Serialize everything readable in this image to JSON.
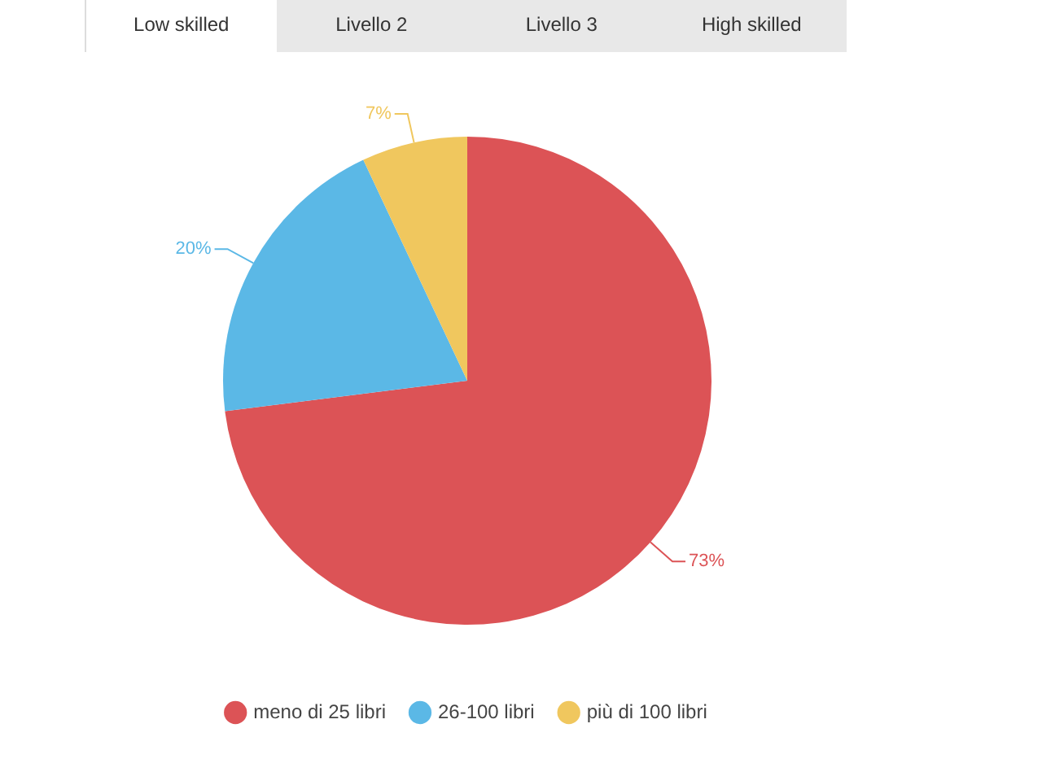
{
  "chart_data": {
    "type": "pie",
    "annotations": [
      "Low skilled",
      "Livello 2",
      "Livello 3",
      "High skilled"
    ],
    "categories": [
      "meno di 25 libri",
      "26-100 libri",
      "più di 100 libri"
    ],
    "values": [
      73,
      20,
      7
    ],
    "colors": [
      "#dc5356",
      "#5bb8e6",
      "#f0c75e"
    ],
    "value_labels": [
      "73%",
      "20%",
      "7%"
    ],
    "legend": "bottom"
  }
}
